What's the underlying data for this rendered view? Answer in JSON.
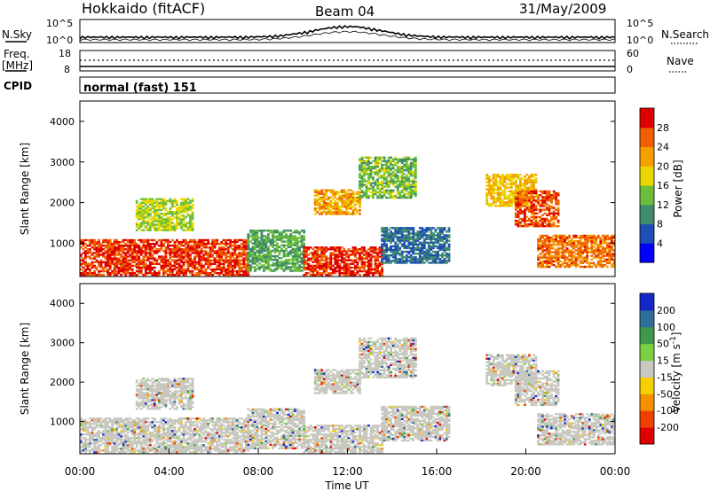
{
  "header": {
    "station": "Hokkaido (fitACF)",
    "beam": "Beam 04",
    "date": "31/May/2009"
  },
  "top_panels": {
    "nsky_label": "N.Sky",
    "nsky_ticks": [
      "10^5",
      "10^0"
    ],
    "nsearch_label": "N.Search",
    "nsearch_ticks": [
      "10^5",
      "10^0"
    ],
    "freq_label": "Freq.",
    "freq_unit": "[MHz]",
    "freq_ticks": [
      "18",
      "8"
    ],
    "nave_label": "Nave",
    "nave_ticks": [
      "60",
      "0"
    ],
    "cpid_label": "CPID",
    "cpid_value": "normal (fast) 151"
  },
  "chart_data": [
    {
      "type": "heatmap",
      "name": "power",
      "ylabel": "Slant Range [km]",
      "yticks": [
        "1000",
        "2000",
        "3000",
        "4000"
      ],
      "ylim": [
        180,
        4500
      ],
      "xlim_hours": [
        0,
        24
      ],
      "colorbar_label": "Power [dB]",
      "colorbar_ticks": [
        "4",
        "8",
        "12",
        "16",
        "20",
        "24",
        "28"
      ],
      "colorbar_colors": [
        "#0000ff",
        "#1e4fb4",
        "#3f8b6e",
        "#6cbf3a",
        "#e8d800",
        "#f5a000",
        "#f06000",
        "#e00000"
      ],
      "regions": [
        {
          "t0": 0.0,
          "t1": 7.5,
          "r0": 200,
          "r1": 1100,
          "level": 26
        },
        {
          "t0": 7.5,
          "t1": 10.0,
          "r0": 300,
          "r1": 1300,
          "level": 10
        },
        {
          "t0": 10.0,
          "t1": 13.5,
          "r0": 200,
          "r1": 900,
          "level": 27
        },
        {
          "t0": 13.5,
          "t1": 16.5,
          "r0": 500,
          "r1": 1400,
          "level": 6
        },
        {
          "t0": 18.2,
          "t1": 20.5,
          "r0": 1900,
          "r1": 2700,
          "level": 18
        },
        {
          "t0": 19.5,
          "t1": 21.5,
          "r0": 1400,
          "r1": 2300,
          "level": 25
        },
        {
          "t0": 20.5,
          "t1": 24.0,
          "r0": 400,
          "r1": 1200,
          "level": 23
        },
        {
          "t0": 2.5,
          "t1": 5.0,
          "r0": 1300,
          "r1": 2100,
          "level": 14
        },
        {
          "t0": 10.5,
          "t1": 12.5,
          "r0": 1700,
          "r1": 2300,
          "level": 20
        },
        {
          "t0": 12.5,
          "t1": 15.0,
          "r0": 2100,
          "r1": 3100,
          "level": 12
        }
      ]
    },
    {
      "type": "heatmap",
      "name": "velocity",
      "ylabel": "Slant Range [km]",
      "yticks": [
        "1000",
        "2000",
        "3000",
        "4000"
      ],
      "ylim": [
        180,
        4500
      ],
      "xlim_hours": [
        0,
        24
      ],
      "xlabel": "Time UT",
      "xticks": [
        "00:00",
        "04:00",
        "08:00",
        "12:00",
        "16:00",
        "20:00",
        "00:00"
      ],
      "colorbar_label": "Velocity [m s^-1]",
      "colorbar_ticks": [
        "200",
        "100",
        "50",
        "15",
        "-15",
        "-50",
        "-100",
        "-200"
      ],
      "colorbar_colors": [
        "#1428c8",
        "#2e6e9a",
        "#3e9a4a",
        "#7ad040",
        "#c8c8c0",
        "#f5d000",
        "#f59000",
        "#f04000",
        "#e00000"
      ],
      "regions": [
        {
          "t0": 0.0,
          "t1": 7.5,
          "r0": 200,
          "r1": 1100,
          "level": 0
        },
        {
          "t0": 7.5,
          "t1": 10.0,
          "r0": 300,
          "r1": 1300,
          "level": 0
        },
        {
          "t0": 10.0,
          "t1": 13.5,
          "r0": 200,
          "r1": 900,
          "level": 0
        },
        {
          "t0": 13.5,
          "t1": 16.5,
          "r0": 500,
          "r1": 1400,
          "level": 0
        },
        {
          "t0": 18.2,
          "t1": 20.5,
          "r0": 1900,
          "r1": 2700,
          "level": 0
        },
        {
          "t0": 19.5,
          "t1": 21.5,
          "r0": 1400,
          "r1": 2300,
          "level": 0
        },
        {
          "t0": 20.5,
          "t1": 24.0,
          "r0": 400,
          "r1": 1200,
          "level": 0
        },
        {
          "t0": 2.5,
          "t1": 5.0,
          "r0": 1300,
          "r1": 2100,
          "level": 0
        },
        {
          "t0": 10.5,
          "t1": 12.5,
          "r0": 1700,
          "r1": 2300,
          "level": 0
        },
        {
          "t0": 12.5,
          "t1": 15.0,
          "r0": 2100,
          "r1": 3100,
          "level": 0
        }
      ]
    }
  ]
}
